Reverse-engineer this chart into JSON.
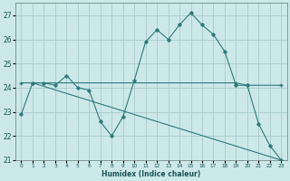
{
  "xlabel": "Humidex (Indice chaleur)",
  "background_color": "#cce8e8",
  "grid_color": "#aacccc",
  "line_color": "#2e7b7b",
  "xlim": [
    -0.5,
    23.5
  ],
  "ylim": [
    21,
    27.5
  ],
  "yticks": [
    21,
    22,
    23,
    24,
    25,
    26,
    27
  ],
  "xticks": [
    0,
    1,
    2,
    3,
    4,
    5,
    6,
    7,
    8,
    9,
    10,
    11,
    12,
    13,
    14,
    15,
    16,
    17,
    18,
    19,
    20,
    21,
    22,
    23
  ],
  "line1_x": [
    0,
    1,
    2,
    3,
    4,
    5,
    6,
    7,
    8,
    9,
    10,
    11,
    12,
    13,
    14,
    15,
    16,
    17,
    18,
    19,
    20,
    21,
    22,
    23
  ],
  "line1_y": [
    22.9,
    24.2,
    24.2,
    24.1,
    24.5,
    24.0,
    23.9,
    22.6,
    22.0,
    22.8,
    24.3,
    25.9,
    26.4,
    26.0,
    26.6,
    27.1,
    26.6,
    26.2,
    25.5,
    24.1,
    24.1,
    22.5,
    21.6,
    21.0
  ],
  "line2_x": [
    0,
    1,
    19,
    20,
    23
  ],
  "line2_y": [
    24.2,
    24.2,
    24.2,
    24.1,
    24.1
  ],
  "line3_x": [
    1,
    23
  ],
  "line3_y": [
    24.2,
    21.0
  ]
}
